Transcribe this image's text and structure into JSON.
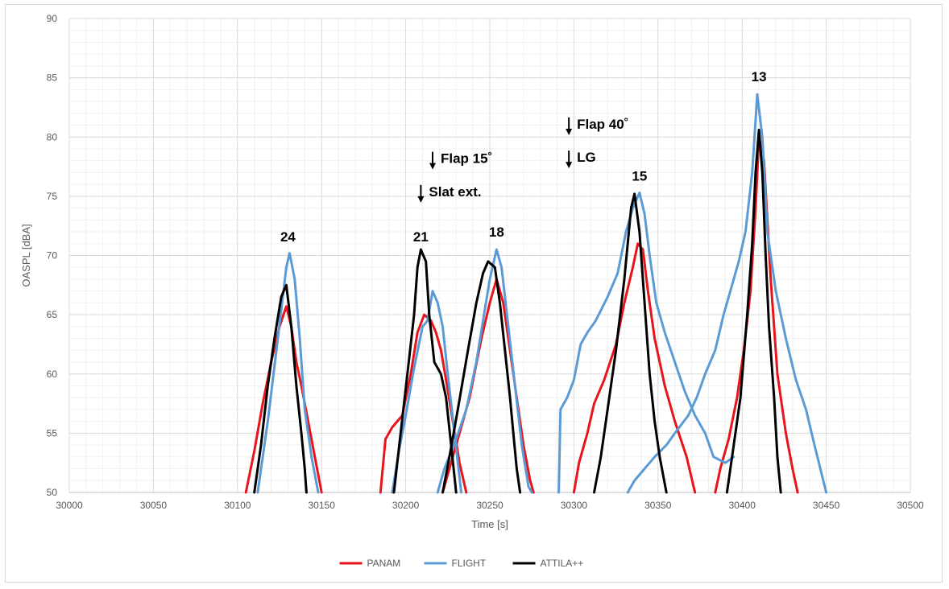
{
  "chart_data": {
    "type": "line",
    "xlabel": "Time [s]",
    "ylabel": "OASPL [dBA]",
    "xlim": [
      30000,
      30500
    ],
    "ylim": [
      50,
      90
    ],
    "x_ticks": [
      "30000",
      "30050",
      "30100",
      "30150",
      "30200",
      "30250",
      "30300",
      "30350",
      "30400",
      "30450",
      "30500"
    ],
    "y_ticks": [
      "50",
      "55",
      "60",
      "65",
      "70",
      "75",
      "80",
      "85",
      "90"
    ],
    "grid": true,
    "legend_position": "bottom",
    "legend": [
      "PANAM",
      "FLIGHT",
      "ATTILA++"
    ],
    "colors": {
      "PANAM": "#e8141c",
      "FLIGHT": "#5b9bd5",
      "ATTILA++": "#000000"
    },
    "series": [
      {
        "name": "PANAM",
        "segments": [
          [
            [
              30105,
              50
            ],
            [
              30110,
              53.5
            ],
            [
              30115,
              57.5
            ],
            [
              30120,
              61
            ],
            [
              30125,
              64
            ],
            [
              30129,
              65.7
            ],
            [
              30132,
              64
            ],
            [
              30135,
              61
            ],
            [
              30138,
              59
            ],
            [
              30142,
              56
            ],
            [
              30146,
              53
            ],
            [
              30150,
              50
            ]
          ],
          [
            [
              30185,
              50
            ],
            [
              30188,
              54.5
            ],
            [
              30192,
              55.5
            ],
            [
              30198,
              56.5
            ],
            [
              30203,
              60
            ],
            [
              30207,
              63.5
            ],
            [
              30211,
              65
            ],
            [
              30215,
              64.5
            ],
            [
              30218,
              63.5
            ],
            [
              30221,
              62
            ],
            [
              30224,
              59.5
            ],
            [
              30228,
              56
            ],
            [
              30232,
              52.5
            ],
            [
              30236,
              50
            ]
          ],
          [
            [
              30222,
              50
            ],
            [
              30230,
              54
            ],
            [
              30238,
              58
            ],
            [
              30245,
              63
            ],
            [
              30250,
              66
            ],
            [
              30254,
              68
            ],
            [
              30258,
              66
            ],
            [
              30262,
              62
            ],
            [
              30266,
              58
            ],
            [
              30270,
              54
            ],
            [
              30274,
              51
            ],
            [
              30276,
              50
            ]
          ],
          [
            [
              30300,
              50
            ],
            [
              30303,
              52.5
            ],
            [
              30308,
              55
            ],
            [
              30312,
              57.5
            ],
            [
              30318,
              59.5
            ],
            [
              30325,
              62.5
            ],
            [
              30330,
              66
            ],
            [
              30335,
              69
            ],
            [
              30338,
              71
            ],
            [
              30341,
              70.5
            ],
            [
              30344,
              67
            ],
            [
              30348,
              63
            ],
            [
              30354,
              59
            ],
            [
              30360,
              56
            ],
            [
              30367,
              53
            ],
            [
              30372,
              50
            ]
          ],
          [
            [
              30384,
              50
            ],
            [
              30387,
              52
            ],
            [
              30392,
              54.5
            ],
            [
              30397,
              58
            ],
            [
              30401,
              62
            ],
            [
              30405,
              67
            ],
            [
              30408,
              74
            ],
            [
              30410,
              80
            ],
            [
              30413,
              78
            ],
            [
              30417,
              68
            ],
            [
              30421,
              60
            ],
            [
              30426,
              55
            ],
            [
              30430,
              52
            ],
            [
              30433,
              50
            ]
          ]
        ]
      },
      {
        "name": "FLIGHT",
        "segments": [
          [
            [
              30112,
              50
            ],
            [
              30118,
              56
            ],
            [
              30124,
              63
            ],
            [
              30129,
              69
            ],
            [
              30131,
              70.2
            ],
            [
              30134,
              68
            ],
            [
              30137,
              63
            ],
            [
              30140,
              57
            ],
            [
              30144,
              53
            ],
            [
              30148,
              50
            ]
          ],
          [
            [
              30192,
              50
            ],
            [
              30196,
              53.5
            ],
            [
              30200,
              56.5
            ],
            [
              30205,
              60.5
            ],
            [
              30210,
              64
            ],
            [
              30213,
              64.5
            ],
            [
              30216,
              67
            ],
            [
              30219,
              66
            ],
            [
              30222,
              64
            ],
            [
              30225,
              60
            ],
            [
              30229,
              55
            ],
            [
              30233,
              50
            ]
          ],
          [
            [
              30219,
              50
            ],
            [
              30223,
              52
            ],
            [
              30230,
              54.5
            ],
            [
              30236,
              57
            ],
            [
              30242,
              61
            ],
            [
              30246,
              64.5
            ],
            [
              30250,
              68
            ],
            [
              30254,
              70.5
            ],
            [
              30257,
              69
            ],
            [
              30261,
              64
            ],
            [
              30265,
              59
            ],
            [
              30269,
              54
            ],
            [
              30273,
              50.5
            ],
            [
              30275,
              50
            ]
          ],
          [
            [
              30291,
              50
            ],
            [
              30292,
              57
            ],
            [
              30296,
              58
            ],
            [
              30300,
              59.5
            ],
            [
              30304,
              62.5
            ],
            [
              30308,
              63.5
            ],
            [
              30313,
              64.5
            ],
            [
              30320,
              66.5
            ],
            [
              30326,
              68.5
            ],
            [
              30331,
              72
            ],
            [
              30335,
              74
            ],
            [
              30339,
              75.3
            ],
            [
              30342,
              73.5
            ],
            [
              30345,
              70
            ],
            [
              30349,
              66
            ],
            [
              30354,
              63.5
            ],
            [
              30360,
              61
            ],
            [
              30366,
              58.5
            ],
            [
              30372,
              56.5
            ],
            [
              30378,
              55
            ],
            [
              30383,
              53
            ],
            [
              30390,
              52.5
            ],
            [
              30395,
              53
            ]
          ],
          [
            [
              30332,
              50
            ],
            [
              30336,
              51
            ],
            [
              30342,
              52
            ],
            [
              30348,
              53
            ],
            [
              30355,
              54
            ],
            [
              30360,
              55
            ],
            [
              30368,
              56.5
            ],
            [
              30373,
              58
            ],
            [
              30378,
              60
            ],
            [
              30384,
              62
            ],
            [
              30389,
              65
            ],
            [
              30394,
              67.5
            ],
            [
              30398,
              69.5
            ],
            [
              30402,
              72
            ],
            [
              30406,
              77
            ],
            [
              30409,
              83.6
            ],
            [
              30412,
              80
            ],
            [
              30415,
              72
            ],
            [
              30420,
              67
            ],
            [
              30426,
              63
            ],
            [
              30432,
              59.5
            ],
            [
              30438,
              57
            ],
            [
              30443,
              54
            ],
            [
              30450,
              50
            ]
          ]
        ]
      },
      {
        "name": "ATTILA++",
        "segments": [
          [
            [
              30110,
              50
            ],
            [
              30114,
              54
            ],
            [
              30118,
              59
            ],
            [
              30122,
              63
            ],
            [
              30126,
              66.5
            ],
            [
              30129,
              67.5
            ],
            [
              30132,
              64
            ],
            [
              30135,
              59
            ],
            [
              30138,
              55
            ],
            [
              30140,
              52
            ],
            [
              30141,
              50
            ]
          ],
          [
            [
              30193,
              50
            ],
            [
              30197,
              55
            ],
            [
              30201,
              60
            ],
            [
              30205,
              65
            ],
            [
              30207,
              69
            ],
            [
              30209,
              70.5
            ],
            [
              30212,
              69.5
            ],
            [
              30214,
              65
            ],
            [
              30217,
              61
            ],
            [
              30221,
              60
            ],
            [
              30224,
              58
            ],
            [
              30227,
              54
            ],
            [
              30230,
              50
            ]
          ],
          [
            [
              30222,
              50
            ],
            [
              30226,
              53
            ],
            [
              30231,
              57
            ],
            [
              30237,
              62
            ],
            [
              30242,
              66
            ],
            [
              30246,
              68.5
            ],
            [
              30249,
              69.5
            ],
            [
              30253,
              69
            ],
            [
              30256,
              66
            ],
            [
              30259,
              62
            ],
            [
              30262,
              58
            ],
            [
              30264,
              55
            ],
            [
              30266,
              52
            ],
            [
              30268,
              50
            ]
          ],
          [
            [
              30312,
              50
            ],
            [
              30316,
              53
            ],
            [
              30320,
              57
            ],
            [
              30325,
              62
            ],
            [
              30330,
              68
            ],
            [
              30334,
              74
            ],
            [
              30336,
              75.2
            ],
            [
              30339,
              72
            ],
            [
              30342,
              66
            ],
            [
              30345,
              60
            ],
            [
              30348,
              56
            ],
            [
              30351,
              53
            ],
            [
              30355,
              50
            ]
          ],
          [
            [
              30391,
              50
            ],
            [
              30395,
              54
            ],
            [
              30399,
              58
            ],
            [
              30403,
              65
            ],
            [
              30406,
              71
            ],
            [
              30408,
              77
            ],
            [
              30410,
              80.6
            ],
            [
              30412,
              77
            ],
            [
              30414,
              70
            ],
            [
              30416,
              64
            ],
            [
              30419,
              58
            ],
            [
              30421,
              53
            ],
            [
              30423,
              50
            ]
          ]
        ]
      }
    ],
    "annotations": {
      "peaks": [
        {
          "label": "24",
          "x": 30130,
          "y": 71.2
        },
        {
          "label": "21",
          "x": 30209,
          "y": 71.2
        },
        {
          "label": "18",
          "x": 30254,
          "y": 71.6
        },
        {
          "label": "15",
          "x": 30339,
          "y": 76.3
        },
        {
          "label": "13",
          "x": 30410,
          "y": 84.7
        }
      ],
      "events": [
        {
          "label": "Flap 15˚",
          "x": 30216,
          "y": 77.8
        },
        {
          "label": "Slat ext.",
          "x": 30209,
          "y": 75.0
        },
        {
          "label": "Flap 40˚",
          "x": 30297,
          "y": 80.7
        },
        {
          "label": "LG",
          "x": 30297,
          "y": 77.9
        }
      ]
    }
  }
}
